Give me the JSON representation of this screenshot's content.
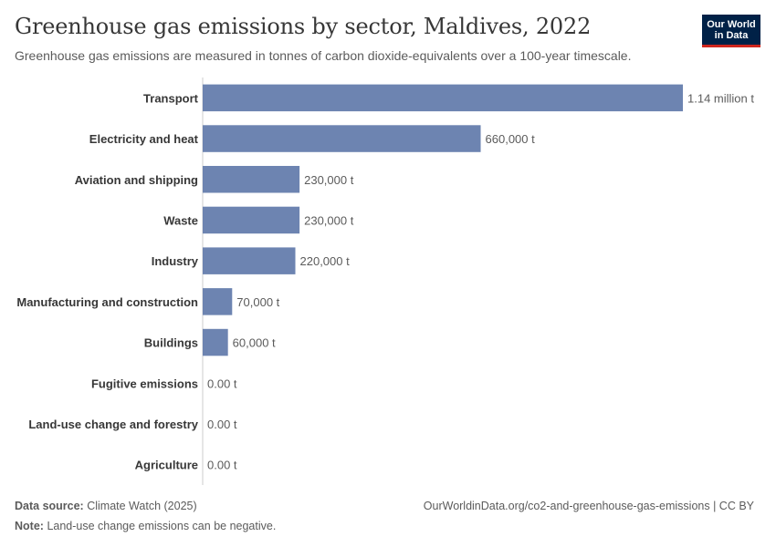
{
  "header": {
    "title": "Greenhouse gas emissions by sector, Maldives, 2022",
    "subtitle": "Greenhouse gas emissions are measured in tonnes of carbon dioxide-equivalents over a 100-year timescale."
  },
  "logo": {
    "line1": "Our World",
    "line2": "in Data"
  },
  "footer": {
    "source_label": "Data source:",
    "source_value": "Climate Watch (2025)",
    "url": "OurWorldinData.org/co2-and-greenhouse-gas-emissions | CC BY",
    "note_label": "Note:",
    "note_value": "Land-use change emissions can be negative."
  },
  "colors": {
    "bar": "#6d84b1",
    "label": "#373737",
    "value": "#5b5b5b",
    "axis": "#cccccc"
  },
  "chart_data": {
    "type": "bar",
    "orientation": "horizontal",
    "categories": [
      "Transport",
      "Electricity and heat",
      "Aviation and shipping",
      "Waste",
      "Industry",
      "Manufacturing and construction",
      "Buildings",
      "Fugitive emissions",
      "Land-use change and forestry",
      "Agriculture"
    ],
    "values": [
      1140000,
      660000,
      230000,
      230000,
      220000,
      70000,
      60000,
      0,
      0,
      0
    ],
    "value_labels": [
      "1.14 million t",
      "660,000 t",
      "230,000 t",
      "230,000 t",
      "220,000 t",
      "70,000 t",
      "60,000 t",
      "0.00 t",
      "0.00 t",
      "0.00 t"
    ],
    "xlim": [
      0,
      1140000
    ],
    "grid": false,
    "unit": "t"
  }
}
